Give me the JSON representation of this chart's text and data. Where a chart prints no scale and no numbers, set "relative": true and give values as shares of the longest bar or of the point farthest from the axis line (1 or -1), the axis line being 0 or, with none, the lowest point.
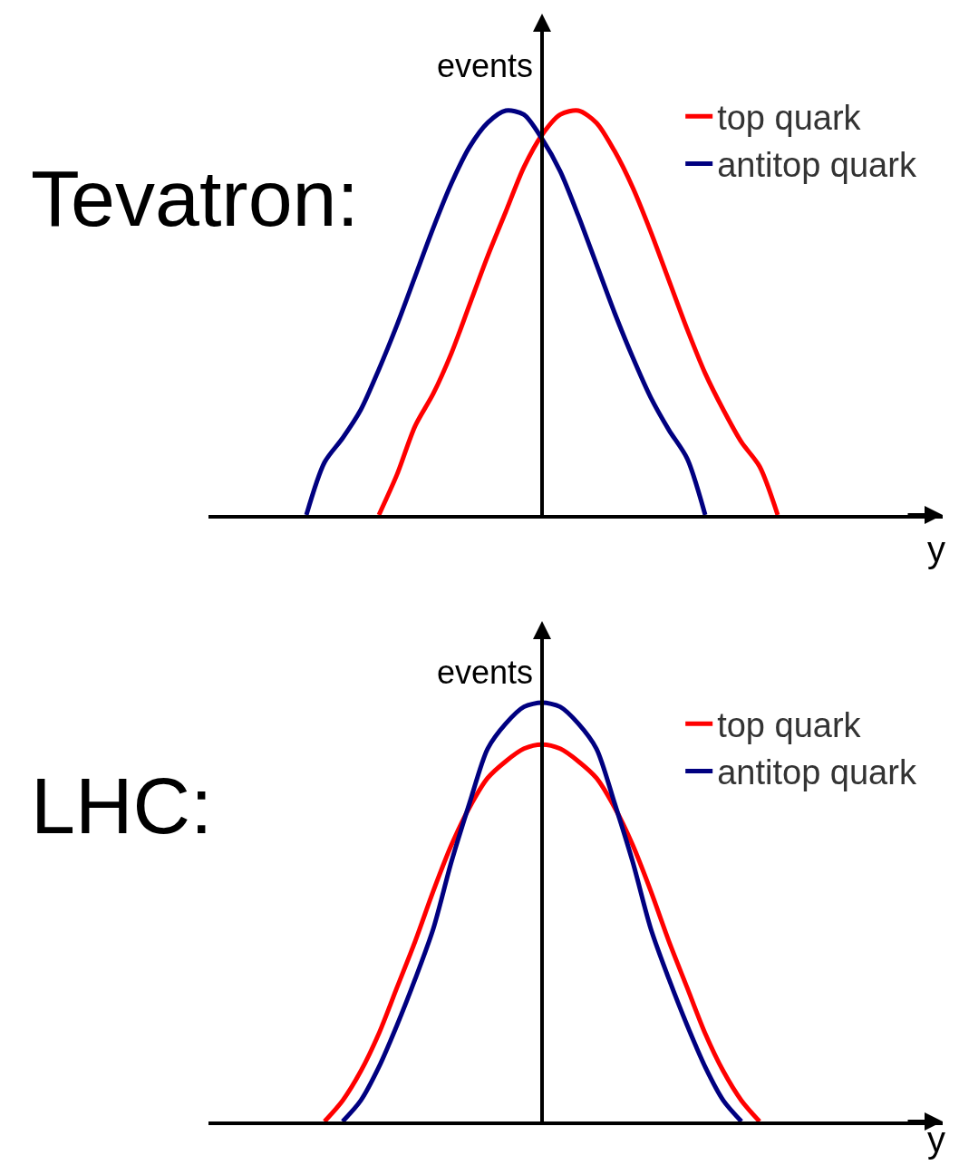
{
  "chart_data": [
    {
      "type": "line",
      "title": "Tevatron:",
      "xlabel": "y",
      "ylabel": "events",
      "relative": true,
      "legend": "top right",
      "marker": "none",
      "line_style": "solid",
      "categories": [
        null,
        null,
        null,
        null,
        null,
        null,
        null,
        null,
        null,
        null,
        null,
        null,
        null,
        null,
        null,
        null,
        null,
        null,
        null,
        null,
        null,
        null,
        null,
        null,
        null,
        null,
        null
      ],
      "series": [
        {
          "name": "top quark",
          "color": "#ff0000",
          "values": [
            null,
            null,
            null,
            null,
            0,
            0.1,
            0.22,
            0.3,
            0.4,
            0.52,
            0.64,
            0.75,
            0.86,
            0.94,
            0.99,
            1,
            0.97,
            0.9,
            0.81,
            0.7,
            0.58,
            0.46,
            0.35,
            0.26,
            0.18,
            0.12,
            0
          ]
        },
        {
          "name": "antitop quark",
          "color": "#000080",
          "values": [
            0,
            0.13,
            0.19,
            0.26,
            0.36,
            0.47,
            0.59,
            0.71,
            0.82,
            0.91,
            0.97,
            1,
            0.99,
            0.93,
            0.85,
            0.74,
            0.62,
            0.5,
            0.39,
            0.29,
            0.21,
            0.14,
            0,
            null,
            null,
            null,
            null
          ]
        }
      ]
    },
    {
      "type": "line",
      "title": "LHC:",
      "xlabel": "y",
      "ylabel": "events",
      "relative": true,
      "legend": "top right",
      "marker": "none",
      "line_style": "solid",
      "categories": [
        null,
        null,
        null,
        null,
        null,
        null,
        null,
        null,
        null,
        null,
        null,
        null,
        null,
        null,
        null,
        null,
        null,
        null,
        null,
        null,
        null,
        null,
        null,
        null,
        null
      ],
      "series": [
        {
          "name": "top quark",
          "color": "#ff0000",
          "values": [
            0,
            0.05,
            0.12,
            0.21,
            0.32,
            0.43,
            0.55,
            0.66,
            0.75,
            0.82,
            0.86,
            0.89,
            0.9,
            0.89,
            0.86,
            0.82,
            0.75,
            0.66,
            0.55,
            0.43,
            0.32,
            0.21,
            0.12,
            0.05,
            0
          ]
        },
        {
          "name": "antitop quark",
          "color": "#000080",
          "values": [
            null,
            0,
            0.05,
            0.13,
            0.23,
            0.34,
            0.46,
            0.62,
            0.76,
            0.89,
            0.95,
            0.99,
            1,
            0.99,
            0.95,
            0.89,
            0.76,
            0.62,
            0.46,
            0.34,
            0.23,
            0.13,
            0.05,
            0,
            null
          ]
        }
      ]
    }
  ]
}
